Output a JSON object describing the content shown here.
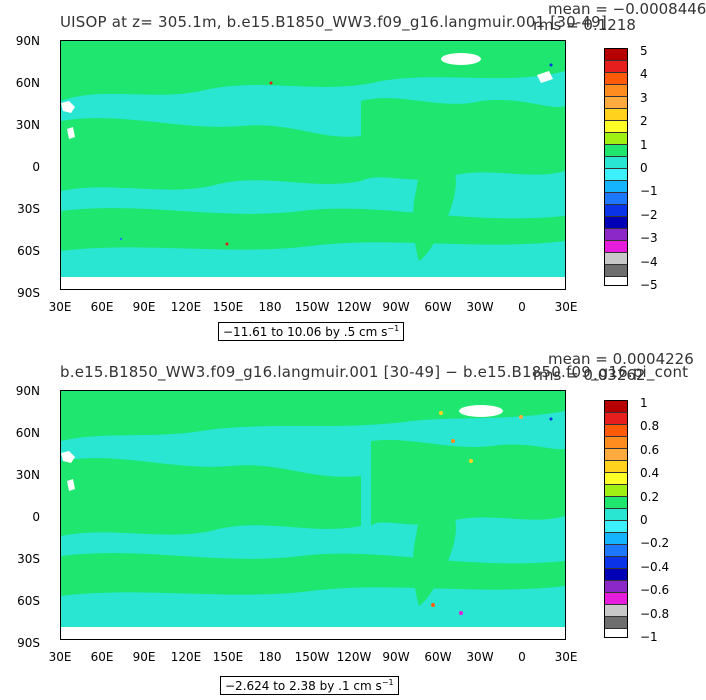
{
  "panels": [
    {
      "title": "UISOP at z= 305.1m, b.e15.B1850_WW3.f09_g16.langmuir.001 [30-49]",
      "mean_label": "mean = −0.0008446",
      "rms_label": "rms = 0.1218",
      "range_label": "−11.61 to 10.06 by .5 cm s",
      "range_unit_sup": "−1",
      "colorbar_labels": [
        "5",
        "4",
        "3",
        "2",
        "1",
        "0",
        "−1",
        "−2",
        "−3",
        "−4",
        "−5"
      ]
    },
    {
      "title": "b.e15.B1850_WW3.f09_g16.langmuir.001 [30-49] − b.e15.B1850.f09_g16.pi_cont",
      "mean_label": "mean = 0.0004226",
      "rms_label": "rms = 0.03262",
      "range_label": "−2.624 to 2.38 by .1 cm s",
      "range_unit_sup": "−1",
      "colorbar_labels": [
        "1",
        "0.8",
        "0.6",
        "0.4",
        "0.2",
        "0",
        "−0.2",
        "−0.4",
        "−0.6",
        "−0.8",
        "−1"
      ]
    }
  ],
  "axes": {
    "lat_labels": [
      "90N",
      "60N",
      "30N",
      "0",
      "30S",
      "60S",
      "90S"
    ],
    "lon_labels": [
      "30E",
      "60E",
      "90E",
      "120E",
      "150E",
      "180",
      "150W",
      "120W",
      "90W",
      "60W",
      "30W",
      "0",
      "30E"
    ]
  },
  "colors": {
    "ocean_main": "#1ee66e",
    "ocean_alt": "#28e6d2",
    "land": "#ffffff",
    "colorbar": [
      "#b40000",
      "#e61e1e",
      "#ff5a0a",
      "#ff8c1e",
      "#ffaa3c",
      "#ffd21e",
      "#ffff28",
      "#a0f014",
      "#1ee66e",
      "#28e6d2",
      "#3cf0ff",
      "#14b4ff",
      "#1e78ff",
      "#0a32e6",
      "#0000b4",
      "#8c28c8",
      "#e61edc",
      "#c8c8c8",
      "#6e6e6e"
    ]
  }
}
